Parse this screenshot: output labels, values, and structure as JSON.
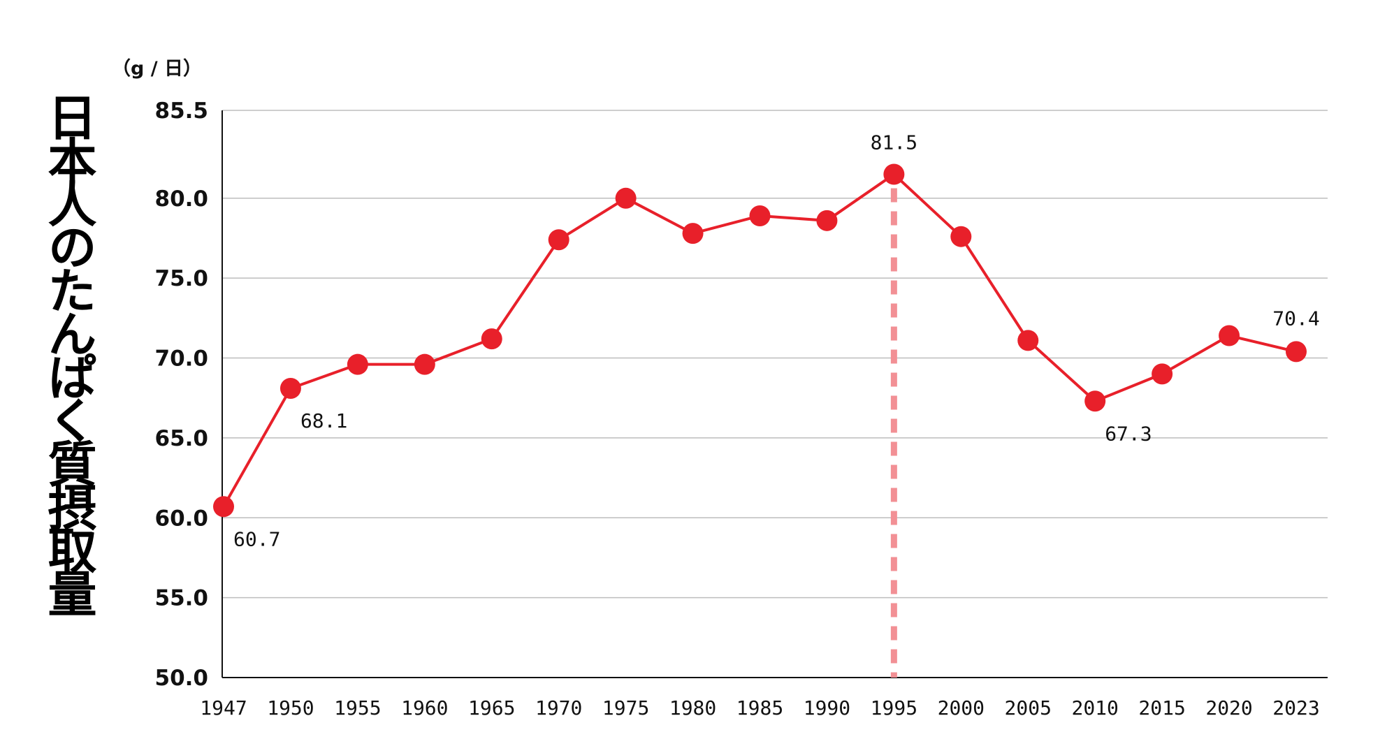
{
  "chart_data": {
    "type": "line",
    "title": "日本人のたんぱく質摂取量",
    "unit_label": "（g / 日）",
    "x": [
      1947,
      1950,
      1955,
      1960,
      1965,
      1970,
      1975,
      1980,
      1985,
      1990,
      1995,
      2000,
      2005,
      2010,
      2015,
      2020,
      2023
    ],
    "x_tick_labels": [
      "1947",
      "1950",
      "1955",
      "1960",
      "1965",
      "1970",
      "1975",
      "1980",
      "1985",
      "1990",
      "1995",
      "2000",
      "2005",
      "2010",
      "2015",
      "2020",
      "2023"
    ],
    "values": [
      60.7,
      68.1,
      69.6,
      69.6,
      71.2,
      77.4,
      80.0,
      77.8,
      78.9,
      78.6,
      81.5,
      77.6,
      71.1,
      67.3,
      69.0,
      71.4,
      70.4
    ],
    "y_tick_labels": [
      "50.0",
      "55.0",
      "60.0",
      "65.0",
      "70.0",
      "75.0",
      "80.0",
      "85.5"
    ],
    "y_tick_values": [
      50,
      55,
      60,
      65,
      70,
      75,
      80,
      85.5
    ],
    "ylim": [
      50,
      85.5
    ],
    "grid": "horizontal",
    "highlight": {
      "x": 1995,
      "label": "1995",
      "value_label": "81.5"
    },
    "data_labels": [
      {
        "x": 1947,
        "text": "60.7",
        "pos": "below-right"
      },
      {
        "x": 1950,
        "text": "68.1",
        "pos": "below-right"
      },
      {
        "x": 2010,
        "text": "67.3",
        "pos": "below-right"
      },
      {
        "x": 2023,
        "text": "70.4",
        "pos": "above"
      }
    ],
    "colors": {
      "line": "#e8202a",
      "highlight_dash": "#f29095",
      "highlight_text": "#e8202a",
      "grid": "#bdbdbd",
      "axis": "#111111"
    }
  }
}
